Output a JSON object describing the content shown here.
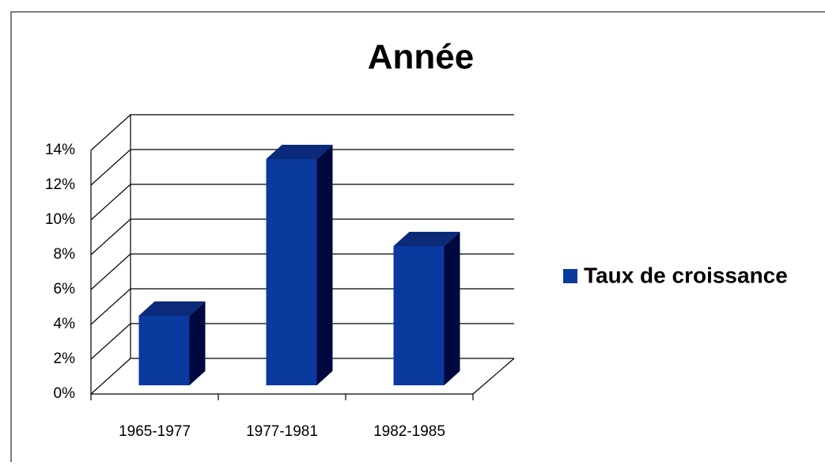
{
  "chart_data": {
    "type": "bar3d",
    "title": "Année",
    "categories": [
      "1965-1977",
      "1977-1981",
      "1982-1985"
    ],
    "series": [
      {
        "name": "Taux de croissance",
        "color": "#0a3a9e",
        "values": [
          4,
          13,
          8
        ]
      }
    ],
    "ylim": [
      0,
      14
    ],
    "yticks": [
      {
        "value": 0,
        "label": "0%"
      },
      {
        "value": 2,
        "label": "2%"
      },
      {
        "value": 4,
        "label": "4%"
      },
      {
        "value": 6,
        "label": "6%"
      },
      {
        "value": 8,
        "label": "8%"
      },
      {
        "value": 10,
        "label": "10%"
      },
      {
        "value": 12,
        "label": "12%"
      },
      {
        "value": 14,
        "label": "14%"
      }
    ],
    "grid": true,
    "legend": "right"
  }
}
